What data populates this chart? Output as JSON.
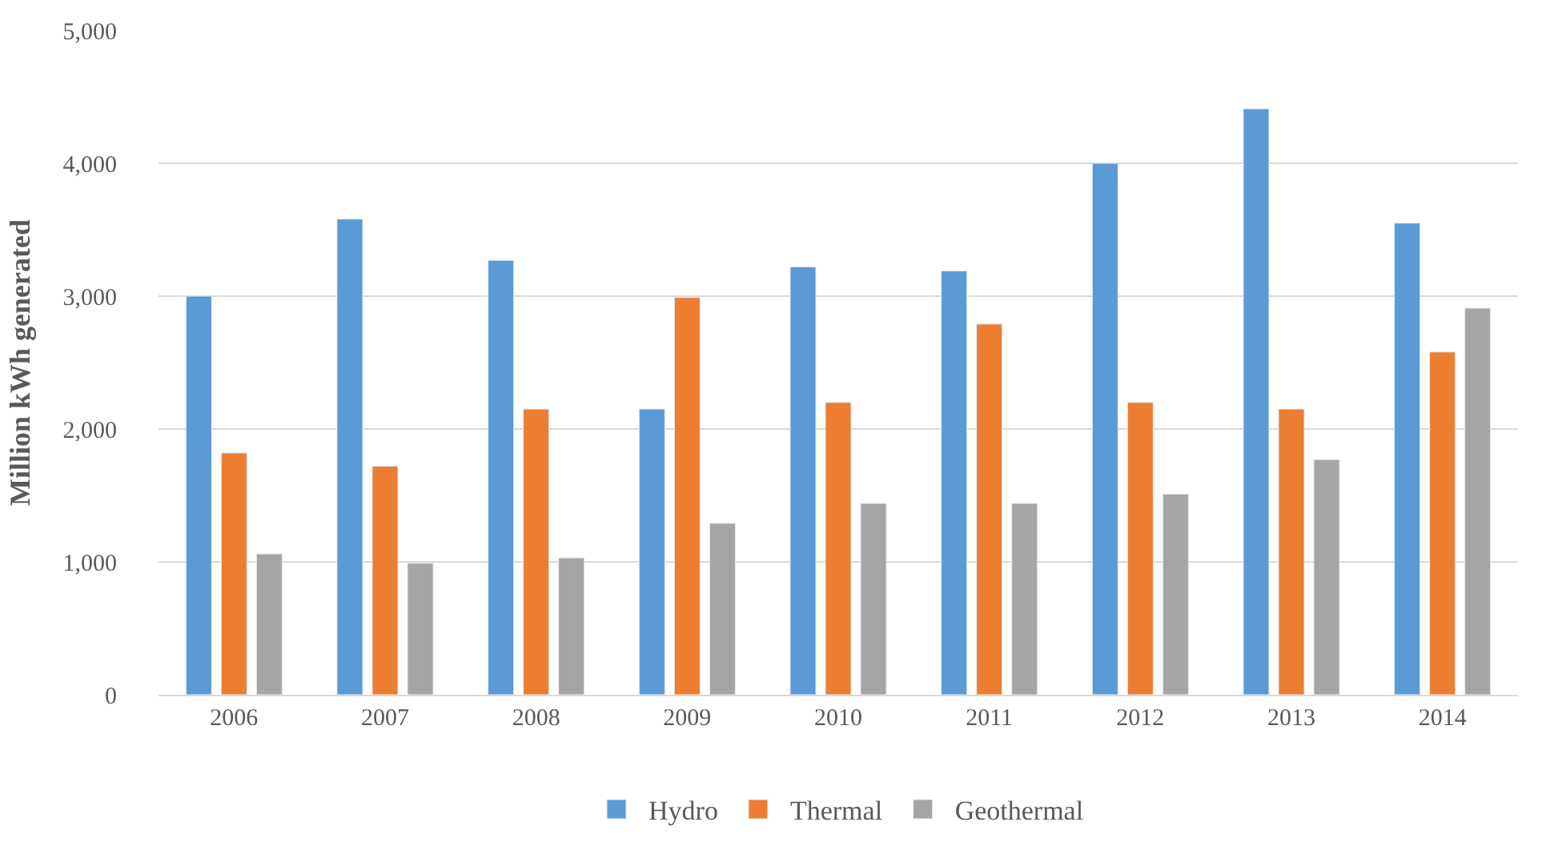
{
  "chart_data": {
    "type": "bar",
    "ylabel": "Million kWh generated",
    "categories": [
      "2006",
      "2007",
      "2008",
      "2009",
      "2010",
      "2011",
      "2012",
      "2013",
      "2014"
    ],
    "series": [
      {
        "name": "Hydro",
        "color": "#5b9bd5",
        "values": [
          3000,
          3580,
          3270,
          2150,
          3220,
          3190,
          4000,
          4410,
          3550
        ]
      },
      {
        "name": "Thermal",
        "color": "#ed7d31",
        "values": [
          1820,
          1720,
          2150,
          2990,
          2200,
          2790,
          2200,
          2150,
          2580
        ]
      },
      {
        "name": "Geothermal",
        "color": "#a5a5a5",
        "values": [
          1060,
          990,
          1030,
          1290,
          1440,
          1440,
          1510,
          1770,
          2910
        ]
      }
    ],
    "ylim": [
      0,
      5000
    ],
    "yticks": [
      {
        "value": 0,
        "label": "0"
      },
      {
        "value": 1000,
        "label": "1,000"
      },
      {
        "value": 2000,
        "label": "2,000"
      },
      {
        "value": 3000,
        "label": "3,000"
      },
      {
        "value": 4000,
        "label": "4,000"
      },
      {
        "value": 5000,
        "label": "5,000"
      }
    ],
    "grid": "y",
    "legend": "bottom"
  }
}
